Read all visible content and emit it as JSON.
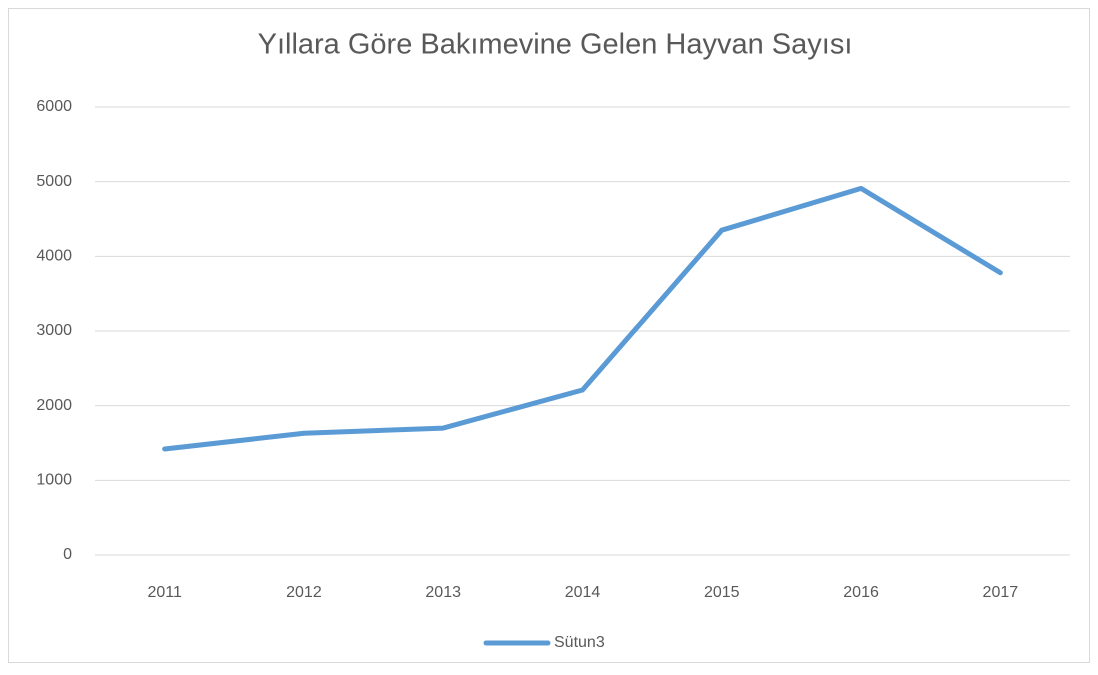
{
  "chart_data": {
    "type": "line",
    "title": "Yıllara Göre Bakımevine Gelen Hayvan Sayısı",
    "categories": [
      "2011",
      "2012",
      "2013",
      "2014",
      "2015",
      "2016",
      "2017"
    ],
    "series": [
      {
        "name": "Sütun3",
        "color": "#5b9bd5",
        "values": [
          1420,
          1630,
          1700,
          2210,
          4350,
          4910,
          3780
        ]
      }
    ],
    "ylim": [
      0,
      6000
    ],
    "yticks": [
      0,
      1000,
      2000,
      3000,
      4000,
      5000,
      6000
    ],
    "grid": true,
    "legend": "bottom"
  }
}
